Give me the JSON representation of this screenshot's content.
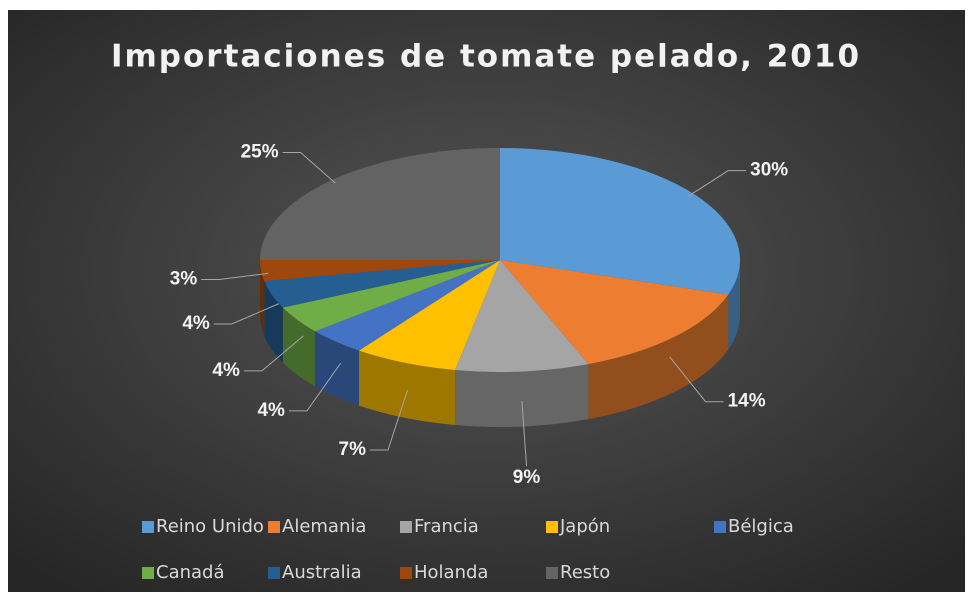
{
  "chart_data": {
    "type": "pie3d",
    "title": "Importaciones de tomate pelado, 2010",
    "categories": [
      "Reino Unido",
      "Alemania",
      "Francia",
      "Japón",
      "Bélgica",
      "Canadá",
      "Australia",
      "Holanda",
      "Resto"
    ],
    "values": [
      30,
      14,
      9,
      7,
      4,
      4,
      4,
      3,
      25
    ],
    "value_labels": [
      "30%",
      "14%",
      "9%",
      "7%",
      "4%",
      "4%",
      "4%",
      "3%",
      "25%"
    ],
    "colors": [
      "#5b9bd5",
      "#ed7d31",
      "#a5a5a5",
      "#ffc000",
      "#4472c4",
      "#70ad47",
      "#255e91",
      "#9e480e",
      "#636363"
    ],
    "legend": "bottom"
  }
}
